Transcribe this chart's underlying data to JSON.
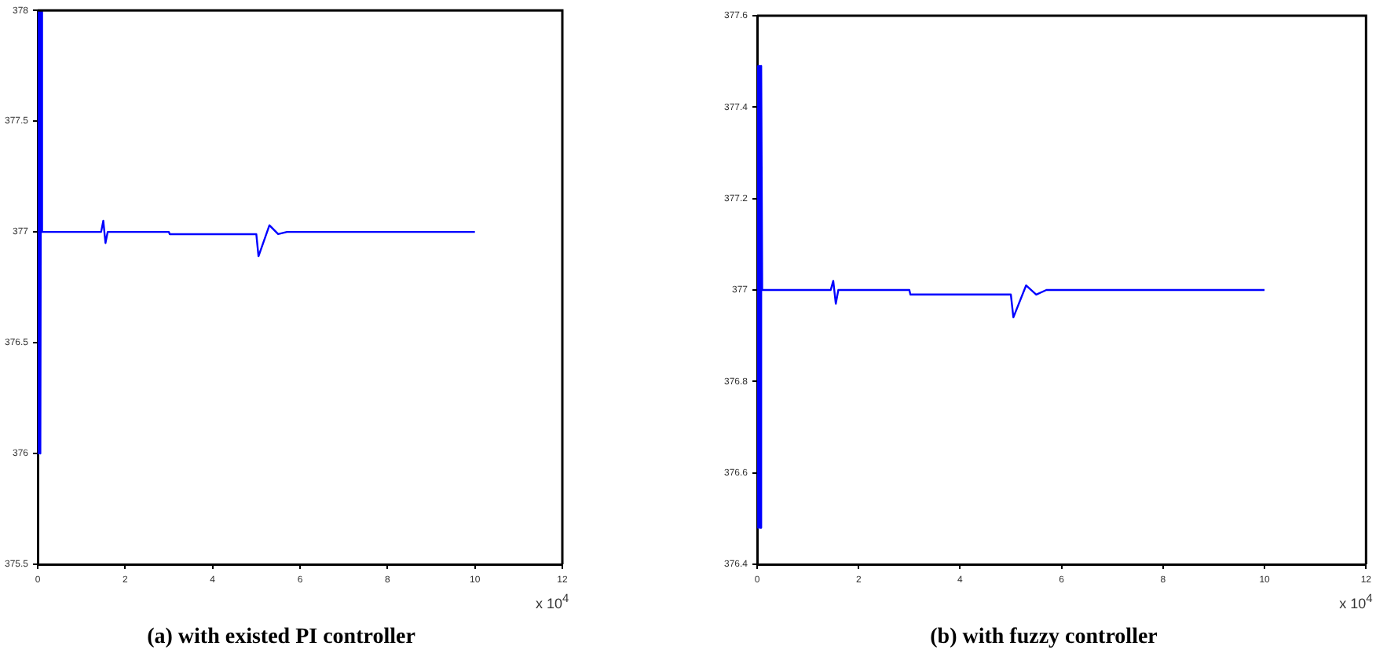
{
  "chart_data": [
    {
      "type": "line",
      "title": "(a) with existed PI controller",
      "xlabel": "x 10$^{4}$",
      "xlim": [
        0,
        12
      ],
      "xticks": [
        0,
        2,
        4,
        6,
        8,
        10,
        12
      ],
      "ylim": [
        375.5,
        378
      ],
      "yticks": [
        375.5,
        376,
        376.5,
        377,
        377.5,
        378
      ],
      "grid": false,
      "legend": false,
      "marker": "none",
      "line_style": "solid",
      "series": [
        {
          "color": "#0000ff",
          "x": [
            0,
            0.01,
            0.02,
            0.03,
            0.04,
            0.05,
            0.06,
            0.07,
            0.08,
            0.1,
            1.45,
            1.5,
            1.55,
            1.6,
            3,
            3.02,
            5,
            5.05,
            5.3,
            5.5,
            5.7,
            5.9,
            10
          ],
          "values": [
            378,
            376,
            378,
            376,
            378,
            376,
            378,
            376,
            378,
            377,
            377,
            377.05,
            376.95,
            377,
            377,
            376.99,
            376.99,
            376.89,
            377.03,
            376.99,
            377,
            377,
            377
          ]
        }
      ]
    },
    {
      "type": "line",
      "title": "(b) with fuzzy controller",
      "xlabel": "x 10$^{4}$",
      "xlim": [
        0,
        12
      ],
      "xticks": [
        0,
        2,
        4,
        6,
        8,
        10,
        12
      ],
      "ylim": [
        376.4,
        377.6
      ],
      "yticks": [
        376.4,
        376.6,
        376.8,
        377,
        377.2,
        377.4,
        377.6
      ],
      "grid": false,
      "legend": false,
      "marker": "none",
      "line_style": "solid",
      "series": [
        {
          "color": "#0000ff",
          "x": [
            0,
            0.01,
            0.02,
            0.03,
            0.04,
            0.05,
            0.06,
            0.07,
            0.08,
            0.1,
            1.45,
            1.5,
            1.55,
            1.6,
            3,
            3.02,
            5,
            5.05,
            5.3,
            5.5,
            5.7,
            5.9,
            10
          ],
          "values": [
            377.49,
            376.48,
            377.49,
            376.48,
            377.49,
            376.48,
            377.49,
            376.48,
            377.49,
            377,
            377,
            377.02,
            376.97,
            377,
            377,
            376.99,
            376.99,
            376.94,
            377.01,
            376.99,
            377,
            377,
            377
          ]
        }
      ]
    }
  ]
}
